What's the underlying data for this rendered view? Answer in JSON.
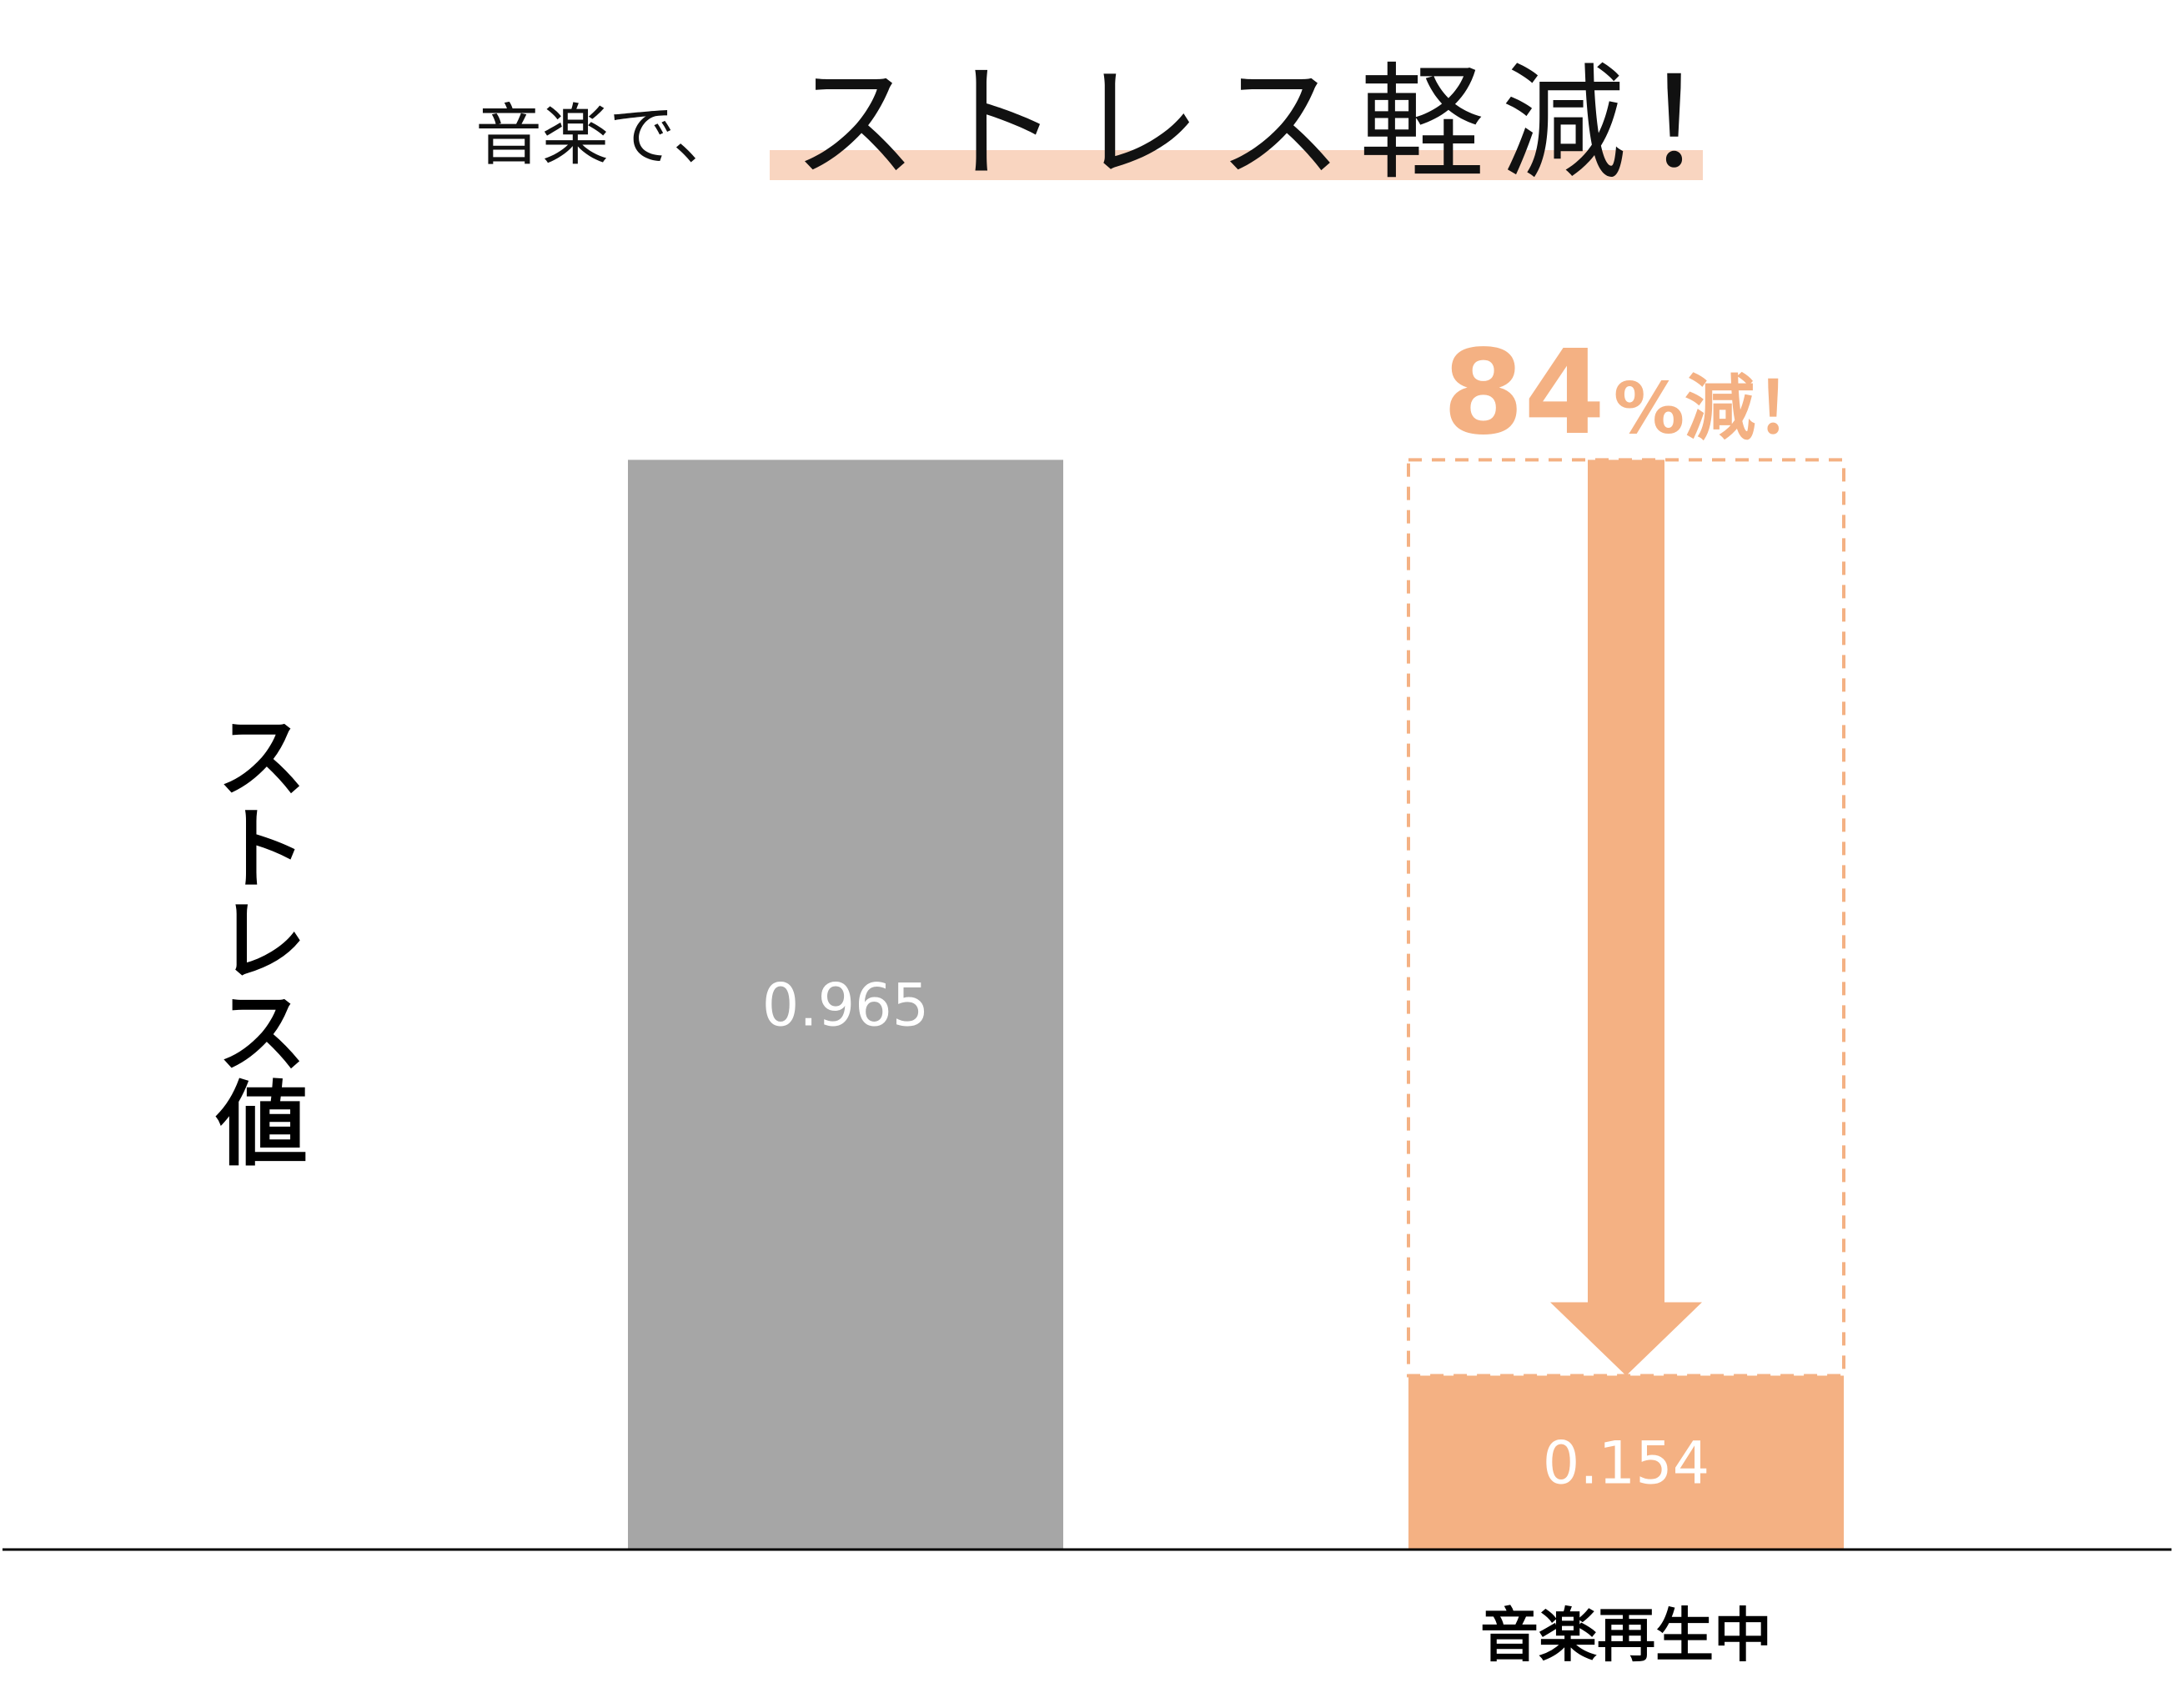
{
  "chart_data": {
    "type": "bar",
    "title": {
      "lead": "音楽で、",
      "main": "ストレス軽減！"
    },
    "annotation": {
      "number": "84",
      "text": "%減！"
    },
    "y_label": "ストレス値",
    "categories": [
      null,
      "音楽再生中"
    ],
    "values": [
      0.965,
      0.154
    ],
    "colors": [
      "#a6a6a6",
      "#f4b183"
    ],
    "ylim": [
      0,
      1
    ]
  }
}
